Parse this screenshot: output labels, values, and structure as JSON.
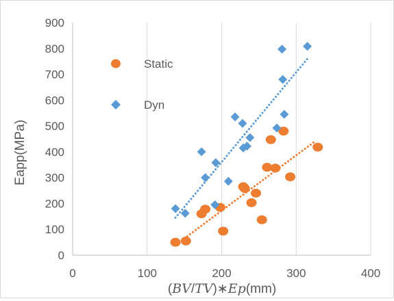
{
  "chart_data": {
    "type": "scatter",
    "title": "",
    "xlabel": "(BV/TV)∗Ep(mm)",
    "xlabel_parts": {
      "open": "(",
      "bv": "BV",
      "slash": "/",
      "tv": "TV",
      "close": ")",
      "op": "∗",
      "ep": "Ep",
      "unit": "(mm)"
    },
    "ylabel": "Eapp(MPa)",
    "xlim": [
      0,
      400
    ],
    "ylim": [
      0,
      900
    ],
    "xticks": [
      "0",
      "100",
      "200",
      "300",
      "400"
    ],
    "yticks": [
      "0",
      "100",
      "200",
      "300",
      "400",
      "500",
      "600",
      "700",
      "800",
      "900"
    ],
    "grid": "vertical",
    "legend_position": "left",
    "series": [
      {
        "name": "Static",
        "marker": "circle",
        "color": "#ed7d31",
        "points": [
          [
            138,
            50
          ],
          [
            152,
            55
          ],
          [
            173,
            160
          ],
          [
            178,
            178
          ],
          [
            198,
            185
          ],
          [
            202,
            93
          ],
          [
            229,
            265
          ],
          [
            231,
            258
          ],
          [
            240,
            203
          ],
          [
            246,
            240
          ],
          [
            254,
            137
          ],
          [
            261,
            340
          ],
          [
            266,
            447
          ],
          [
            272,
            337
          ],
          [
            283,
            480
          ],
          [
            292,
            303
          ],
          [
            329,
            418
          ]
        ],
        "trendline": [
          [
            150,
            65
          ],
          [
            325,
            440
          ]
        ]
      },
      {
        "name": "Dyn",
        "marker": "diamond",
        "color": "#5b9bd5",
        "points": [
          [
            138,
            180
          ],
          [
            151,
            162
          ],
          [
            173,
            400
          ],
          [
            178,
            300
          ],
          [
            191,
            195
          ],
          [
            192,
            358
          ],
          [
            209,
            286
          ],
          [
            218,
            535
          ],
          [
            228,
            510
          ],
          [
            229,
            415
          ],
          [
            234,
            422
          ],
          [
            238,
            455
          ],
          [
            274,
            492
          ],
          [
            281,
            797
          ],
          [
            282,
            680
          ],
          [
            284,
            545
          ],
          [
            315,
            808
          ]
        ],
        "trendline": [
          [
            138,
            145
          ],
          [
            315,
            760
          ]
        ]
      }
    ]
  }
}
